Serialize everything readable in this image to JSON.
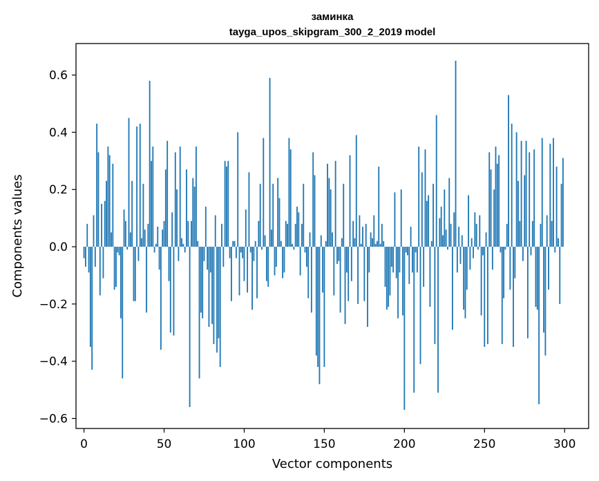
{
  "chart_data": {
    "type": "bar",
    "title": "заминка",
    "subtitle": "tayga_upos_skipgram_300_2_2019 model",
    "xlabel": "Vector components",
    "ylabel": "Components values",
    "xlim": [
      -5,
      315
    ],
    "ylim": [
      -0.635,
      0.71
    ],
    "xticks": [
      0,
      50,
      100,
      150,
      200,
      250,
      300
    ],
    "yticks": [
      -0.6,
      -0.4,
      -0.2,
      0.0,
      0.2,
      0.4,
      0.6
    ],
    "ytick_labels": [
      "−0.6",
      "−0.4",
      "−0.2",
      "0.0",
      "0.2",
      "0.4",
      "0.6"
    ],
    "bar_color": "#1f77b4",
    "x": "indices 0-299 (vector component index)",
    "values": [
      -0.04,
      -0.07,
      0.08,
      -0.09,
      -0.35,
      -0.43,
      0.11,
      -0.07,
      0.43,
      0.33,
      -0.17,
      0.15,
      -0.11,
      0.16,
      0.23,
      0.35,
      0.32,
      0.05,
      0.29,
      -0.15,
      -0.14,
      -0.02,
      -0.03,
      -0.25,
      -0.46,
      0.13,
      0.09,
      -0.01,
      0.45,
      0.05,
      0.23,
      -0.19,
      -0.19,
      0.42,
      -0.05,
      0.43,
      0.03,
      0.22,
      0.06,
      -0.23,
      0.08,
      0.58,
      0.3,
      0.35,
      -0.02,
      0.01,
      0.07,
      -0.08,
      -0.36,
      0.06,
      0.09,
      0.27,
      0.37,
      -0.12,
      -0.3,
      0.12,
      -0.31,
      0.33,
      0.2,
      -0.05,
      0.35,
      0.03,
      0.01,
      -0.02,
      0.27,
      0.09,
      -0.56,
      0.09,
      0.24,
      0.21,
      0.35,
      0.02,
      -0.46,
      -0.23,
      -0.25,
      -0.05,
      0.14,
      -0.08,
      -0.28,
      -0.09,
      -0.27,
      -0.34,
      0.11,
      -0.37,
      -0.32,
      -0.42,
      0.08,
      -0.07,
      0.3,
      0.28,
      0.3,
      -0.04,
      -0.19,
      0.02,
      0.02,
      -0.04,
      0.4,
      -0.17,
      -0.02,
      -0.04,
      -0.12,
      0.13,
      -0.16,
      0.26,
      -0.02,
      -0.22,
      -0.05,
      0.02,
      -0.18,
      0.09,
      0.22,
      -0.01,
      0.38,
      0.04,
      -0.12,
      -0.14,
      0.59,
      0.06,
      0.22,
      -0.1,
      -0.07,
      0.24,
      0.17,
      0.02,
      -0.11,
      -0.09,
      0.09,
      0.08,
      0.38,
      0.34,
      0.01,
      -0.01,
      0.08,
      0.14,
      0.12,
      -0.1,
      0.08,
      0.22,
      -0.02,
      -0.07,
      -0.18,
      0.05,
      -0.23,
      0.33,
      0.25,
      -0.38,
      -0.42,
      -0.48,
      0.04,
      -0.16,
      -0.42,
      0.02,
      0.29,
      0.24,
      0.2,
      0.05,
      -0.17,
      0.3,
      -0.06,
      -0.05,
      -0.23,
      0.03,
      0.22,
      -0.27,
      -0.09,
      -0.19,
      0.32,
      -0.12,
      0.09,
      0.03,
      0.39,
      -0.2,
      0.11,
      0.01,
      0.07,
      -0.19,
      0.08,
      -0.28,
      -0.09,
      0.05,
      0.03,
      0.11,
      0.01,
      0.02,
      0.28,
      0.01,
      0.08,
      0.02,
      -0.14,
      -0.22,
      -0.21,
      -0.17,
      -0.07,
      -0.09,
      0.19,
      -0.11,
      -0.25,
      -0.09,
      0.2,
      -0.24,
      -0.57,
      -0.02,
      -0.03,
      -0.13,
      0.07,
      -0.09,
      -0.51,
      -0.02,
      -0.09,
      0.35,
      -0.41,
      0.26,
      -0.14,
      0.34,
      0.16,
      0.18,
      -0.21,
      0.02,
      0.22,
      -0.34,
      0.46,
      -0.51,
      0.1,
      0.14,
      0.04,
      0.2,
      0.06,
      -0.01,
      0.24,
      0.08,
      -0.29,
      0.12,
      0.65,
      -0.09,
      0.07,
      -0.06,
      0.04,
      -0.22,
      -0.25,
      -0.15,
      0.18,
      -0.08,
      0.03,
      -0.04,
      0.12,
      0.08,
      -0.01,
      0.11,
      -0.24,
      -0.03,
      -0.35,
      0.05,
      -0.34,
      0.33,
      0.27,
      -0.08,
      0.2,
      0.35,
      0.29,
      0.32,
      -0.02,
      -0.34,
      -0.18,
      -0.01,
      0.08,
      0.53,
      -0.15,
      0.43,
      -0.35,
      -0.11,
      0.4,
      0.23,
      0.09,
      0.37,
      -0.05,
      0.25,
      0.37,
      -0.32,
      0.33,
      -0.03,
      0.09,
      0.34,
      -0.21,
      -0.22,
      -0.55,
      0.08,
      0.38,
      -0.3,
      -0.38,
      0.11,
      -0.15,
      0.36,
      0.09,
      0.38,
      -0.02,
      0.28,
      0.03,
      -0.2,
      0.22,
      0.31
    ]
  }
}
